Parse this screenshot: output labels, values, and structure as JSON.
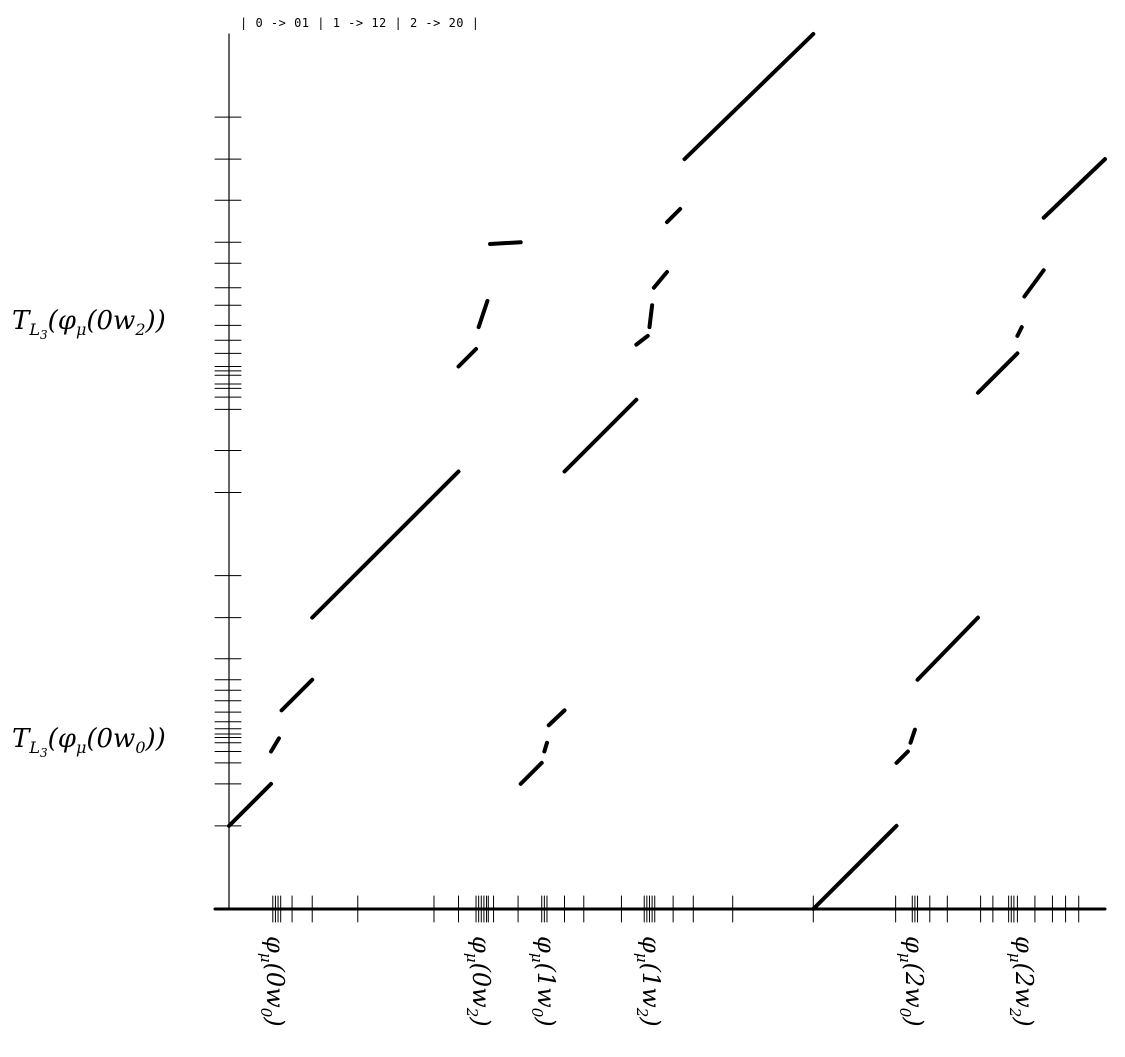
{
  "rule_text": "| 0 -> 01 | 1 -> 12 | 2 -> 20 |",
  "y_labels": {
    "upper": "T_L3(φ_μ(0w2))",
    "lower": "T_L3(φ_μ(0w0))"
  },
  "x_labels": [
    {
      "text": "φ_μ(0w0)",
      "x": 0.05
    },
    {
      "text": "φ_μ(0w2)",
      "x": 0.285
    },
    {
      "text": "φ_μ(1w0)",
      "x": 0.36
    },
    {
      "text": "φ_μ(1w2)",
      "x": 0.48
    },
    {
      "text": "φ_μ(2w0)",
      "x": 0.78
    },
    {
      "text": "φ_μ(2w2)",
      "x": 0.905
    }
  ],
  "chart_data": {
    "type": "scatter",
    "title": "",
    "xlabel": "",
    "ylabel": "",
    "xlim": [
      0,
      1
    ],
    "ylim": [
      0,
      1
    ],
    "grid": false,
    "colors": {
      "marks": "#000000",
      "background": "#ffffff"
    },
    "x_ticks": [
      0.05,
      0.053,
      0.056,
      0.059,
      0.072,
      0.095,
      0.147,
      0.234,
      0.262,
      0.282,
      0.285,
      0.288,
      0.291,
      0.294,
      0.296,
      0.302,
      0.33,
      0.357,
      0.36,
      0.363,
      0.383,
      0.405,
      0.448,
      0.474,
      0.477,
      0.48,
      0.483,
      0.486,
      0.507,
      0.53,
      0.575,
      0.667,
      0.761,
      0.78,
      0.783,
      0.786,
      0.8,
      0.82,
      0.858,
      0.872,
      0.89,
      0.893,
      0.896,
      0.9,
      0.92,
      0.94,
      0.955,
      0.97
    ],
    "y_ticks": [
      0.095,
      0.143,
      0.167,
      0.18,
      0.19,
      0.196,
      0.2,
      0.206,
      0.214,
      0.225,
      0.238,
      0.25,
      0.262,
      0.286,
      0.333,
      0.381,
      0.476,
      0.524,
      0.571,
      0.585,
      0.595,
      0.6,
      0.61,
      0.615,
      0.62,
      0.635,
      0.65,
      0.667,
      0.69,
      0.71,
      0.738,
      0.762,
      0.81,
      0.857,
      0.905
    ],
    "series": [
      {
        "segments": [
          {
            "x": [
              0.0,
              0.048
            ],
            "y": [
              0.095,
              0.143
            ]
          },
          {
            "x": [
              0.048,
              0.057
            ],
            "y": [
              0.18,
              0.195
            ]
          },
          {
            "x": [
              0.06,
              0.095
            ],
            "y": [
              0.227,
              0.262
            ]
          },
          {
            "x": [
              0.095,
              0.262
            ],
            "y": [
              0.333,
              0.5
            ]
          },
          {
            "x": [
              0.262,
              0.282
            ],
            "y": [
              0.62,
              0.64
            ]
          },
          {
            "x": [
              0.285,
              0.295
            ],
            "y": [
              0.665,
              0.695
            ]
          },
          {
            "x": [
              0.298,
              0.333
            ],
            "y": [
              0.76,
              0.762
            ]
          },
          {
            "x": [
              0.333,
              0.357
            ],
            "y": [
              0.143,
              0.167
            ]
          },
          {
            "x": [
              0.36,
              0.363
            ],
            "y": [
              0.18,
              0.19
            ]
          },
          {
            "x": [
              0.365,
              0.383
            ],
            "y": [
              0.21,
              0.227
            ]
          },
          {
            "x": [
              0.383,
              0.465
            ],
            "y": [
              0.5,
              0.582
            ]
          },
          {
            "x": [
              0.465,
              0.478
            ],
            "y": [
              0.645,
              0.655
            ]
          },
          {
            "x": [
              0.48,
              0.483
            ],
            "y": [
              0.665,
              0.69
            ]
          },
          {
            "x": [
              0.485,
              0.5
            ],
            "y": [
              0.71,
              0.728
            ]
          },
          {
            "x": [
              0.5,
              0.515
            ],
            "y": [
              0.785,
              0.8
            ]
          },
          {
            "x": [
              0.52,
              0.667
            ],
            "y": [
              0.857,
              1.0
            ]
          },
          {
            "x": [
              0.667,
              0.762
            ],
            "y": [
              0.0,
              0.095
            ]
          },
          {
            "x": [
              0.762,
              0.775
            ],
            "y": [
              0.167,
              0.18
            ]
          },
          {
            "x": [
              0.778,
              0.783
            ],
            "y": [
              0.19,
              0.205
            ]
          },
          {
            "x": [
              0.786,
              0.855
            ],
            "y": [
              0.262,
              0.333
            ]
          },
          {
            "x": [
              0.855,
              0.9
            ],
            "y": [
              0.59,
              0.635
            ]
          },
          {
            "x": [
              0.9,
              0.905
            ],
            "y": [
              0.655,
              0.665
            ]
          },
          {
            "x": [
              0.908,
              0.93
            ],
            "y": [
              0.7,
              0.73
            ]
          },
          {
            "x": [
              0.93,
              1.0
            ],
            "y": [
              0.79,
              0.857
            ]
          }
        ]
      }
    ]
  }
}
